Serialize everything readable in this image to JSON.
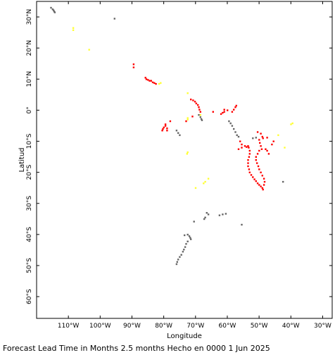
{
  "axes": {
    "xlabel": "Longitude",
    "ylabel": "Latitud",
    "x_ticks": [
      {
        "value": -110,
        "label": "110°W"
      },
      {
        "value": -100,
        "label": "100°W"
      },
      {
        "value": -90,
        "label": "90°W"
      },
      {
        "value": -80,
        "label": "80°W"
      },
      {
        "value": -70,
        "label": "70°W"
      },
      {
        "value": -60,
        "label": "60°W"
      },
      {
        "value": -50,
        "label": "50°W"
      },
      {
        "value": -40,
        "label": "40°W"
      },
      {
        "value": -30,
        "label": "30°W"
      }
    ],
    "y_ticks": [
      {
        "value": 30,
        "label": "30°N"
      },
      {
        "value": 20,
        "label": "20°N"
      },
      {
        "value": 10,
        "label": "10°N"
      },
      {
        "value": 0,
        "label": "0°"
      },
      {
        "value": -10,
        "label": "10°S"
      },
      {
        "value": -20,
        "label": "20°S"
      },
      {
        "value": -30,
        "label": "30°S"
      },
      {
        "value": -40,
        "label": "40°S"
      },
      {
        "value": -50,
        "label": "50°S"
      },
      {
        "value": -60,
        "label": "60°S"
      }
    ]
  },
  "footer": "Forecast Lead Time in Months 2.5 months Hecho en 0000 1 Jun 2025",
  "colors": {
    "red": "#ff0000",
    "yellow": "#ffff33",
    "gray": "#666666"
  },
  "chart_data": {
    "type": "scatter",
    "xlim": [
      -120,
      -27
    ],
    "ylim": [
      -67,
      35
    ],
    "series": [
      {
        "color": "gray",
        "points": [
          [
            -115.5,
            33
          ],
          [
            -115,
            32.5
          ],
          [
            -114.7,
            32.2
          ],
          [
            -114.5,
            31.8
          ],
          [
            -114.3,
            31.5
          ],
          [
            -95.5,
            29.5
          ],
          [
            -69,
            -1.5
          ],
          [
            -68.5,
            -2.2
          ],
          [
            -68.2,
            -2.8
          ],
          [
            -68,
            -3.2
          ],
          [
            -59.5,
            -3.5
          ],
          [
            -59,
            -4.2
          ],
          [
            -58.5,
            -5
          ],
          [
            -58,
            -6
          ],
          [
            -57.5,
            -7
          ],
          [
            -57,
            -8
          ],
          [
            -56.5,
            -8.5
          ],
          [
            -52,
            -9
          ],
          [
            -51,
            -8.8
          ],
          [
            -76,
            -6.5
          ],
          [
            -75.5,
            -7.3
          ],
          [
            -75,
            -8
          ],
          [
            -42.5,
            -23
          ],
          [
            -66.5,
            -33
          ],
          [
            -66,
            -33.5
          ],
          [
            -67,
            -34.5
          ],
          [
            -67.3,
            -35
          ],
          [
            -70.5,
            -35.8
          ],
          [
            -62.5,
            -33.8
          ],
          [
            -61.5,
            -33.5
          ],
          [
            -60.5,
            -33.3
          ],
          [
            -55.5,
            -36.8
          ],
          [
            -72.5,
            -40
          ],
          [
            -72,
            -40.5
          ],
          [
            -71.7,
            -41
          ],
          [
            -71.5,
            -41.5
          ],
          [
            -73.5,
            -40.2
          ],
          [
            -72.5,
            -42.2
          ],
          [
            -73,
            -43
          ],
          [
            -73.3,
            -44
          ],
          [
            -73.7,
            -44.8
          ],
          [
            -74,
            -45.5
          ],
          [
            -74.5,
            -46.5
          ],
          [
            -75,
            -47.2
          ],
          [
            -75.5,
            -48
          ],
          [
            -75.8,
            -48.8
          ],
          [
            -76,
            -49.5
          ]
        ]
      },
      {
        "color": "yellow",
        "points": [
          [
            -108.5,
            26.5
          ],
          [
            -108.5,
            25.8
          ],
          [
            -103.5,
            19.5
          ],
          [
            -81,
            8.8
          ],
          [
            -81.5,
            8.5
          ],
          [
            -72.5,
            5.5
          ],
          [
            -72.5,
            -2.5
          ],
          [
            -72.5,
            -3
          ],
          [
            -72.5,
            -13.5
          ],
          [
            -72.7,
            -14
          ],
          [
            -68.5,
            -1.5
          ],
          [
            -66,
            -22
          ],
          [
            -67,
            -23
          ],
          [
            -67.5,
            -23.5
          ],
          [
            -70,
            -25
          ],
          [
            -44,
            -8
          ],
          [
            -40,
            -4.5
          ],
          [
            -39.5,
            -4.2
          ],
          [
            -42,
            -12
          ]
        ]
      },
      {
        "color": "red",
        "points": [
          [
            -89.5,
            14.8
          ],
          [
            -89.5,
            13.8
          ],
          [
            -85.8,
            10.5
          ],
          [
            -85.5,
            10
          ],
          [
            -85,
            9.8
          ],
          [
            -84.5,
            9.5
          ],
          [
            -84,
            9.5
          ],
          [
            -83.5,
            9
          ],
          [
            -83,
            8.8
          ],
          [
            -82.5,
            8.5
          ],
          [
            -71.5,
            3.5
          ],
          [
            -70.8,
            3.2
          ],
          [
            -70.2,
            2.8
          ],
          [
            -69.8,
            2.2
          ],
          [
            -69.3,
            1.7
          ],
          [
            -69,
            1
          ],
          [
            -68.8,
            0.2
          ],
          [
            -68.5,
            -0.5
          ],
          [
            -71,
            -2
          ],
          [
            -73,
            -3.5
          ],
          [
            -64.5,
            -0.5
          ],
          [
            -61,
            -0.5
          ],
          [
            -61.5,
            -0.8
          ],
          [
            -62,
            -1.2
          ],
          [
            -61,
            0.2
          ],
          [
            -60,
            0
          ],
          [
            -58.5,
            -0.5
          ],
          [
            -58,
            0.2
          ],
          [
            -57.5,
            1
          ],
          [
            -57.2,
            1.5
          ],
          [
            -78,
            -3.5
          ],
          [
            -79.5,
            -4.5
          ],
          [
            -79.5,
            -5
          ],
          [
            -80,
            -5.5
          ],
          [
            -80.3,
            -6
          ],
          [
            -80.5,
            -6.5
          ],
          [
            -79,
            -6.5
          ],
          [
            -79,
            -5.8
          ],
          [
            -56,
            -10
          ],
          [
            -55.5,
            -11
          ],
          [
            -54.5,
            -11.5
          ],
          [
            -54,
            -11.8
          ],
          [
            -55.5,
            -12
          ],
          [
            -56.5,
            -12.5
          ],
          [
            -53.5,
            -11.5
          ],
          [
            -53.3,
            -12
          ],
          [
            -53,
            -13
          ],
          [
            -53,
            -14
          ],
          [
            -53.2,
            -15
          ],
          [
            -53.5,
            -16
          ],
          [
            -53.5,
            -17
          ],
          [
            -53.5,
            -18
          ],
          [
            -53.2,
            -19
          ],
          [
            -53,
            -20
          ],
          [
            -52.5,
            -20.8
          ],
          [
            -52,
            -21.5
          ],
          [
            -51.5,
            -22.2
          ],
          [
            -51,
            -22.8
          ],
          [
            -50.5,
            -23.5
          ],
          [
            -50,
            -24
          ],
          [
            -49.5,
            -24.5
          ],
          [
            -49,
            -25
          ],
          [
            -48.8,
            -25.5
          ],
          [
            -50,
            -13
          ],
          [
            -50.5,
            -14
          ],
          [
            -51,
            -15
          ],
          [
            -51,
            -16
          ],
          [
            -50.7,
            -17
          ],
          [
            -50.3,
            -18
          ],
          [
            -50,
            -19
          ],
          [
            -49.5,
            -20
          ],
          [
            -49,
            -21
          ],
          [
            -48.5,
            -22
          ],
          [
            -48.3,
            -23
          ],
          [
            -48.5,
            -24
          ],
          [
            -50.5,
            -7
          ],
          [
            -49.5,
            -7.5
          ],
          [
            -49,
            -8.5
          ],
          [
            -48.8,
            -9
          ],
          [
            -47.5,
            -8.8
          ],
          [
            -50,
            -9.5
          ],
          [
            -49.8,
            -10.5
          ],
          [
            -49.5,
            -11.5
          ],
          [
            -49.2,
            -12.5
          ],
          [
            -48,
            -12.5
          ],
          [
            -47.5,
            -13
          ],
          [
            -47,
            -14
          ],
          [
            -45.5,
            -10
          ],
          [
            -46,
            -11
          ]
        ]
      }
    ]
  }
}
